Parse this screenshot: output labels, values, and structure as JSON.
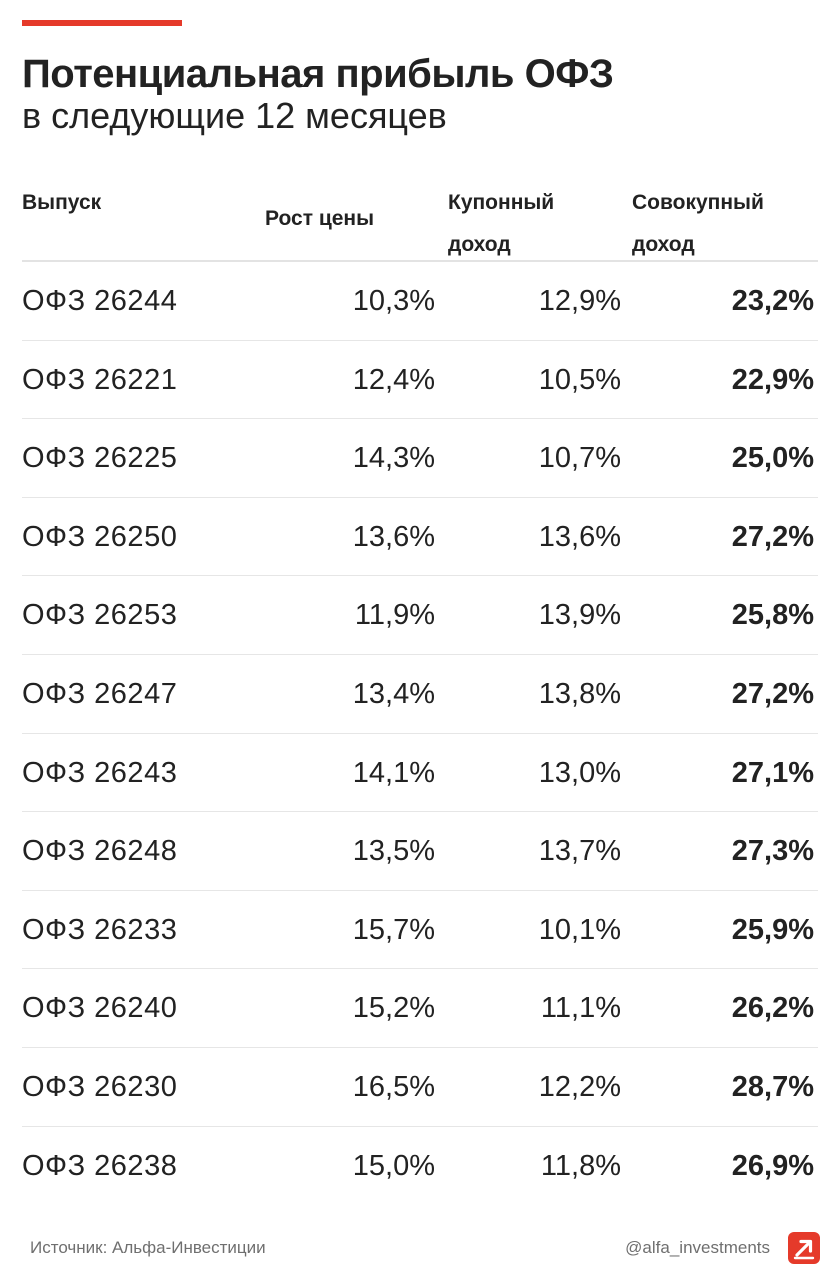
{
  "title": "Потенциальная прибыль ОФЗ",
  "subtitle": "в следующие 12 месяцев",
  "columns": {
    "issue": "Выпуск",
    "price_growth": "Рост цены",
    "coupon_line1": "Купонный",
    "coupon_line2": "доход",
    "total_line1": "Совокупный",
    "total_line2": "доход"
  },
  "rows": [
    {
      "issue": "ОФЗ 26244",
      "price_growth": "10,3%",
      "coupon": "12,9%",
      "total": "23,2%"
    },
    {
      "issue": "ОФЗ 26221",
      "price_growth": "12,4%",
      "coupon": "10,5%",
      "total": "22,9%"
    },
    {
      "issue": "ОФЗ 26225",
      "price_growth": "14,3%",
      "coupon": "10,7%",
      "total": "25,0%"
    },
    {
      "issue": "ОФЗ 26250",
      "price_growth": "13,6%",
      "coupon": "13,6%",
      "total": "27,2%"
    },
    {
      "issue": "ОФЗ 26253",
      "price_growth": "11,9%",
      "coupon": "13,9%",
      "total": "25,8%"
    },
    {
      "issue": "ОФЗ 26247",
      "price_growth": "13,4%",
      "coupon": "13,8%",
      "total": "27,2%"
    },
    {
      "issue": "ОФЗ 26243",
      "price_growth": "14,1%",
      "coupon": "13,0%",
      "total": "27,1%"
    },
    {
      "issue": "ОФЗ 26248",
      "price_growth": "13,5%",
      "coupon": "13,7%",
      "total": "27,3%"
    },
    {
      "issue": "ОФЗ 26233",
      "price_growth": "15,7%",
      "coupon": "10,1%",
      "total": "25,9%"
    },
    {
      "issue": "ОФЗ 26240",
      "price_growth": "15,2%",
      "coupon": "11,1%",
      "total": "26,2%"
    },
    {
      "issue": "ОФЗ 26230",
      "price_growth": "16,5%",
      "coupon": "12,2%",
      "total": "28,7%"
    },
    {
      "issue": "ОФЗ 26238",
      "price_growth": "15,0%",
      "coupon": "11,8%",
      "total": "26,9%"
    }
  ],
  "footer": {
    "source": "Источник: Альфа-Инвестиции",
    "handle": "@alfa_investments",
    "logo_icon": "alfa-arrow-logo-icon"
  },
  "colors": {
    "accent": "#e53a2a",
    "text": "#222222",
    "muted": "#6f6f6f",
    "divider": "#e6e6e6"
  }
}
